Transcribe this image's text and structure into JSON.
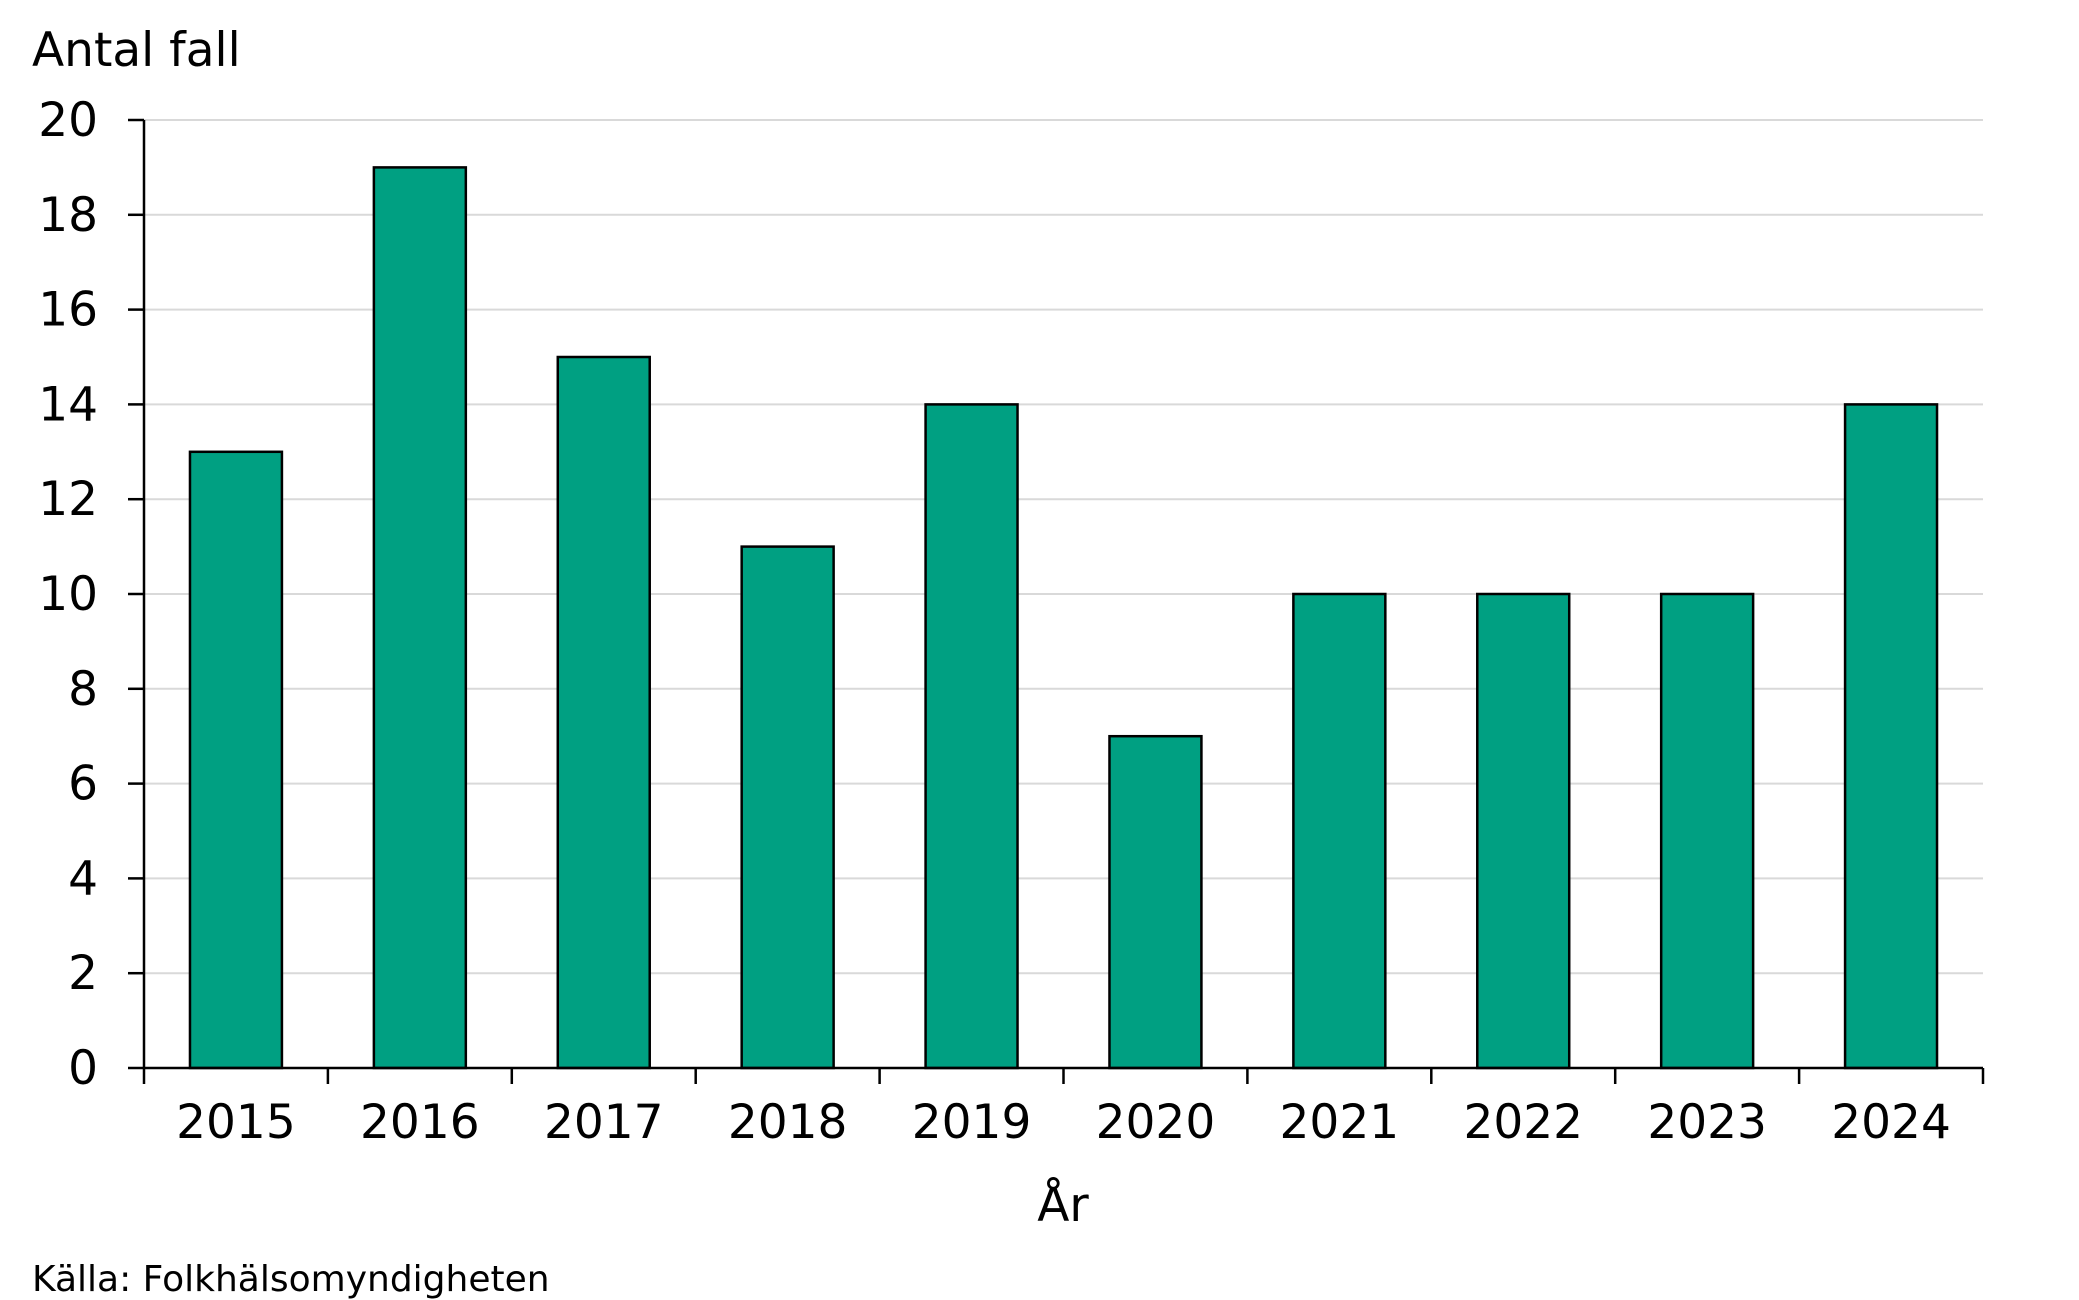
{
  "chart_data": {
    "type": "bar",
    "categories": [
      "2015",
      "2016",
      "2017",
      "2018",
      "2019",
      "2020",
      "2021",
      "2022",
      "2023",
      "2024"
    ],
    "values": [
      13,
      19,
      15,
      11,
      14,
      7,
      10,
      10,
      10,
      14
    ],
    "ylabel": "Antal fall",
    "xlabel": "År",
    "ylim": [
      0,
      20
    ],
    "yticks": [
      "0",
      "2",
      "4",
      "6",
      "8",
      "10",
      "12",
      "14",
      "16",
      "18",
      "20"
    ],
    "grid": true,
    "bar_color": "#00a082",
    "bar_edge_color": "#000000",
    "grid_color": "#d9d9d9"
  },
  "source": "Källa: Folkhälsomyndigheten"
}
